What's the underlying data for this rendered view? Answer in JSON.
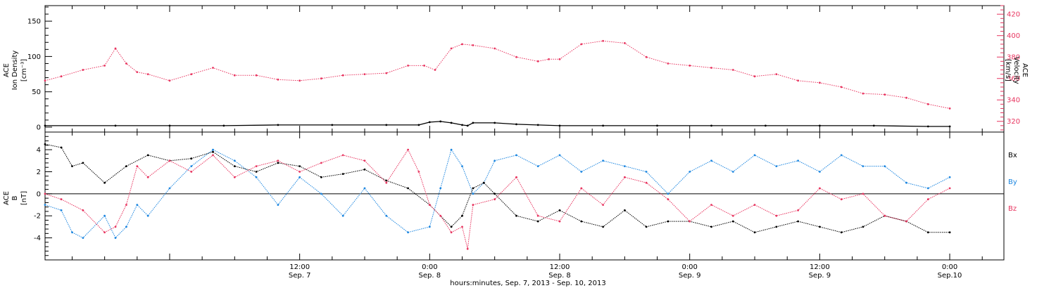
{
  "figure": {
    "xaxis_caption": "hours:minutes, Sep.  7, 2013 - Sep. 10, 2013"
  },
  "colors": {
    "axis": "#000000",
    "density": "#000000",
    "velocity": "#e8345f",
    "bx": "#000000",
    "by": "#1c86e0",
    "bz": "#e8345f"
  },
  "chart_data": [
    {
      "type": "scatter",
      "panel": "plasma",
      "x_unit": "hours since Sep. 7 00:00",
      "xlim": [
        -11.5,
        77
      ],
      "x_ticks": [
        {
          "h": 12,
          "time": "12:00",
          "date": "Sep. 7"
        },
        {
          "h": 24,
          "time": "0:00",
          "date": "Sep. 8"
        },
        {
          "h": 36,
          "time": "12:00",
          "date": "Sep. 8"
        },
        {
          "h": 48,
          "time": "0:00",
          "date": "Sep. 9"
        },
        {
          "h": 60,
          "time": "12:00",
          "date": "Sep. 9"
        },
        {
          "h": 72,
          "time": "0:00",
          "date": "Sep.10"
        }
      ],
      "left_axis": {
        "label_lines": [
          "ACE",
          "Ion Density",
          "[cm⁻³]"
        ],
        "ylim": [
          -7,
          172
        ],
        "ticks": [
          0,
          50,
          100,
          150
        ]
      },
      "right_axis": {
        "label_lines": [
          "ACE",
          "Velocity",
          "[km/s]"
        ],
        "ylim": [
          310,
          428
        ],
        "ticks": [
          320,
          340,
          360,
          380,
          400,
          420
        ]
      },
      "series": [
        {
          "key": "density",
          "axis": "left",
          "x": [
            -11.5,
            -5,
            0,
            5,
            10,
            15,
            20,
            23,
            24,
            25,
            26,
            27,
            27.5,
            28,
            30,
            32,
            34,
            36,
            40,
            45,
            50,
            55,
            60,
            65,
            70,
            72
          ],
          "y": [
            2,
            2,
            2,
            2,
            3,
            3,
            3,
            3,
            7,
            8,
            6,
            3,
            2,
            6,
            6,
            4,
            3,
            2,
            2,
            2,
            2,
            2,
            2,
            2,
            1,
            1
          ]
        },
        {
          "key": "velocity",
          "axis": "right",
          "x": [
            -11.5,
            -10,
            -8,
            -6,
            -5,
            -4,
            -3,
            -2,
            0,
            2,
            4,
            6,
            8,
            10,
            12,
            14,
            16,
            18,
            20,
            22,
            23.5,
            24.5,
            26,
            27,
            28,
            30,
            32,
            34,
            35,
            36,
            38,
            40,
            42,
            44,
            46,
            48,
            50,
            52,
            54,
            56,
            58,
            60,
            62,
            64,
            66,
            68,
            70,
            72
          ],
          "y": [
            358,
            362,
            368,
            372,
            388,
            374,
            366,
            364,
            358,
            364,
            370,
            363,
            363,
            359,
            358,
            360,
            363,
            364,
            365,
            372,
            372,
            368,
            388,
            392,
            391,
            388,
            380,
            376,
            378,
            378,
            392,
            395,
            393,
            380,
            374,
            372,
            370,
            368,
            362,
            364,
            358,
            356,
            352,
            346,
            345,
            342,
            336,
            332
          ]
        }
      ]
    },
    {
      "type": "scatter",
      "panel": "magnetic",
      "x_unit": "hours since Sep. 7 00:00",
      "xlim": [
        -11.5,
        77
      ],
      "left_axis": {
        "label_lines": [
          "ACE",
          "B",
          "[nT]"
        ],
        "ylim": [
          -6,
          5.6
        ],
        "ticks": [
          -4,
          -2,
          0,
          2,
          4
        ]
      },
      "zero_line": 0,
      "series": [
        {
          "key": "bx",
          "name": "Bx",
          "x": [
            -11.5,
            -10,
            -9,
            -8,
            -6,
            -4,
            -2,
            0,
            2,
            4,
            6,
            8,
            10,
            12,
            14,
            16,
            18,
            20,
            22,
            24,
            26,
            27,
            28,
            29,
            30,
            32,
            34,
            36,
            38,
            40,
            42,
            44,
            46,
            48,
            50,
            52,
            54,
            56,
            58,
            60,
            62,
            64,
            66,
            68,
            70,
            72
          ],
          "y": [
            4.5,
            4.2,
            2.5,
            2.8,
            1.0,
            2.5,
            3.5,
            3.0,
            3.2,
            3.8,
            2.5,
            2.0,
            2.8,
            2.5,
            1.5,
            1.8,
            2.2,
            1.2,
            0.5,
            -1.0,
            -3.0,
            -2.0,
            0.5,
            1.0,
            0.0,
            -2.0,
            -2.5,
            -1.5,
            -2.5,
            -3.0,
            -1.5,
            -3.0,
            -2.5,
            -2.5,
            -3.0,
            -2.5,
            -3.5,
            -3.0,
            -2.5,
            -3.0,
            -3.5,
            -3.0,
            -2.0,
            -2.5,
            -3.5,
            -3.5
          ]
        },
        {
          "key": "by",
          "name": "By",
          "x": [
            -11.5,
            -10,
            -9,
            -8,
            -6,
            -5,
            -4,
            -3,
            -2,
            0,
            2,
            4,
            6,
            8,
            10,
            12,
            14,
            16,
            18,
            20,
            22,
            24,
            25,
            26,
            27,
            28,
            29,
            30,
            32,
            34,
            36,
            38,
            40,
            42,
            44,
            46,
            48,
            50,
            52,
            54,
            56,
            58,
            60,
            62,
            64,
            66,
            68,
            70,
            72
          ],
          "y": [
            -1.0,
            -1.5,
            -3.5,
            -4.0,
            -2.0,
            -4.0,
            -3.0,
            -1.0,
            -2.0,
            0.5,
            2.5,
            4.0,
            3.0,
            1.5,
            -1.0,
            1.5,
            0.0,
            -2.0,
            0.5,
            -2.0,
            -3.5,
            -3.0,
            0.5,
            4.0,
            2.5,
            0.0,
            1.0,
            3.0,
            3.5,
            2.5,
            3.5,
            2.0,
            3.0,
            2.5,
            2.0,
            0.0,
            2.0,
            3.0,
            2.0,
            3.5,
            2.5,
            3.0,
            2.0,
            3.5,
            2.5,
            2.5,
            1.0,
            0.5,
            1.5
          ]
        },
        {
          "key": "bz",
          "name": "Bz",
          "x": [
            -11.5,
            -10,
            -8,
            -6,
            -5,
            -4,
            -3,
            -2,
            0,
            2,
            4,
            6,
            8,
            10,
            12,
            14,
            16,
            18,
            20,
            22,
            23,
            24,
            25,
            26,
            27,
            27.5,
            28,
            30,
            32,
            34,
            36,
            38,
            40,
            42,
            44,
            46,
            48,
            50,
            52,
            54,
            56,
            58,
            60,
            62,
            64,
            66,
            68,
            70,
            72
          ],
          "y": [
            0.0,
            -0.5,
            -1.5,
            -3.5,
            -3.0,
            -1.0,
            2.5,
            1.5,
            3.0,
            2.0,
            3.5,
            1.5,
            2.5,
            3.0,
            2.0,
            2.8,
            3.5,
            3.0,
            1.0,
            4.0,
            2.0,
            -1.0,
            -2.0,
            -3.5,
            -3.0,
            -5.0,
            -1.0,
            -0.5,
            1.5,
            -2.0,
            -2.5,
            0.5,
            -1.0,
            1.5,
            1.0,
            -0.5,
            -2.5,
            -1.0,
            -2.0,
            -1.0,
            -2.0,
            -1.5,
            0.5,
            -0.5,
            0.0,
            -2.0,
            -2.5,
            -0.5,
            0.5
          ]
        }
      ]
    }
  ]
}
